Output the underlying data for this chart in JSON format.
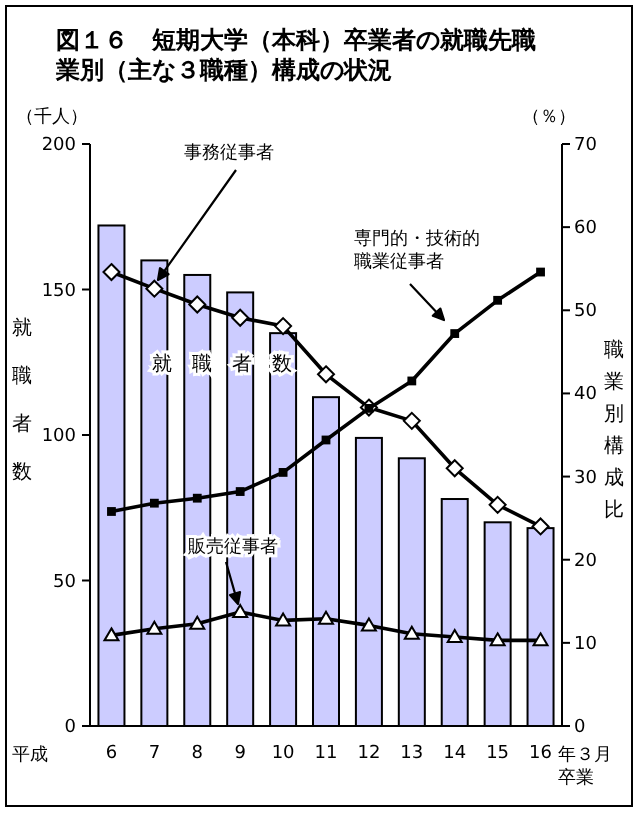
{
  "chart_data": {
    "type": "bar",
    "title": "図１６　短期大学（本科）卒業者の就職先職業別（主な３職種）構成の状況",
    "ylabel": "就職者数",
    "y2label": "職業別構成比",
    "annotations": [
      "（千人）",
      "（％）",
      "平成",
      "年３月卒業"
    ],
    "categories": [
      "6",
      "7",
      "8",
      "9",
      "10",
      "11",
      "12",
      "13",
      "14",
      "15",
      "16"
    ],
    "series": [
      {
        "name": "就　職　者　数",
        "color": "#ccccff",
        "values": [
          172,
          160,
          155,
          149,
          135,
          113,
          99,
          92,
          78,
          70,
          68
        ]
      },
      {
        "name": "事務従事者",
        "type": "line",
        "axis": "y2",
        "marker": "diamond",
        "color": "#000000",
        "values": [
          54.6,
          52.6,
          50.7,
          49.1,
          48.1,
          42.3,
          38.3,
          36.7,
          31.0,
          26.6,
          24.0
        ]
      },
      {
        "name": "専門的・技術的職業従事者",
        "type": "line",
        "axis": "y2",
        "marker": "square",
        "color": "#000000",
        "values": [
          25.8,
          26.8,
          27.4,
          28.2,
          30.5,
          34.4,
          38.2,
          41.5,
          47.2,
          51.2,
          54.6
        ]
      },
      {
        "name": "販売従事者",
        "type": "line",
        "axis": "y2",
        "marker": "triangle",
        "color": "#000000",
        "values": [
          10.9,
          11.7,
          12.3,
          13.7,
          12.7,
          12.9,
          12.1,
          11.1,
          10.7,
          10.3,
          10.3
        ]
      }
    ],
    "ylim": [
      0,
      200
    ],
    "yticks": [
      0,
      50,
      100,
      150,
      200
    ],
    "y2lim": [
      0,
      70
    ],
    "y2ticks": [
      0,
      10,
      20,
      30,
      40,
      50,
      60,
      70
    ],
    "grid": false,
    "legend": false
  }
}
